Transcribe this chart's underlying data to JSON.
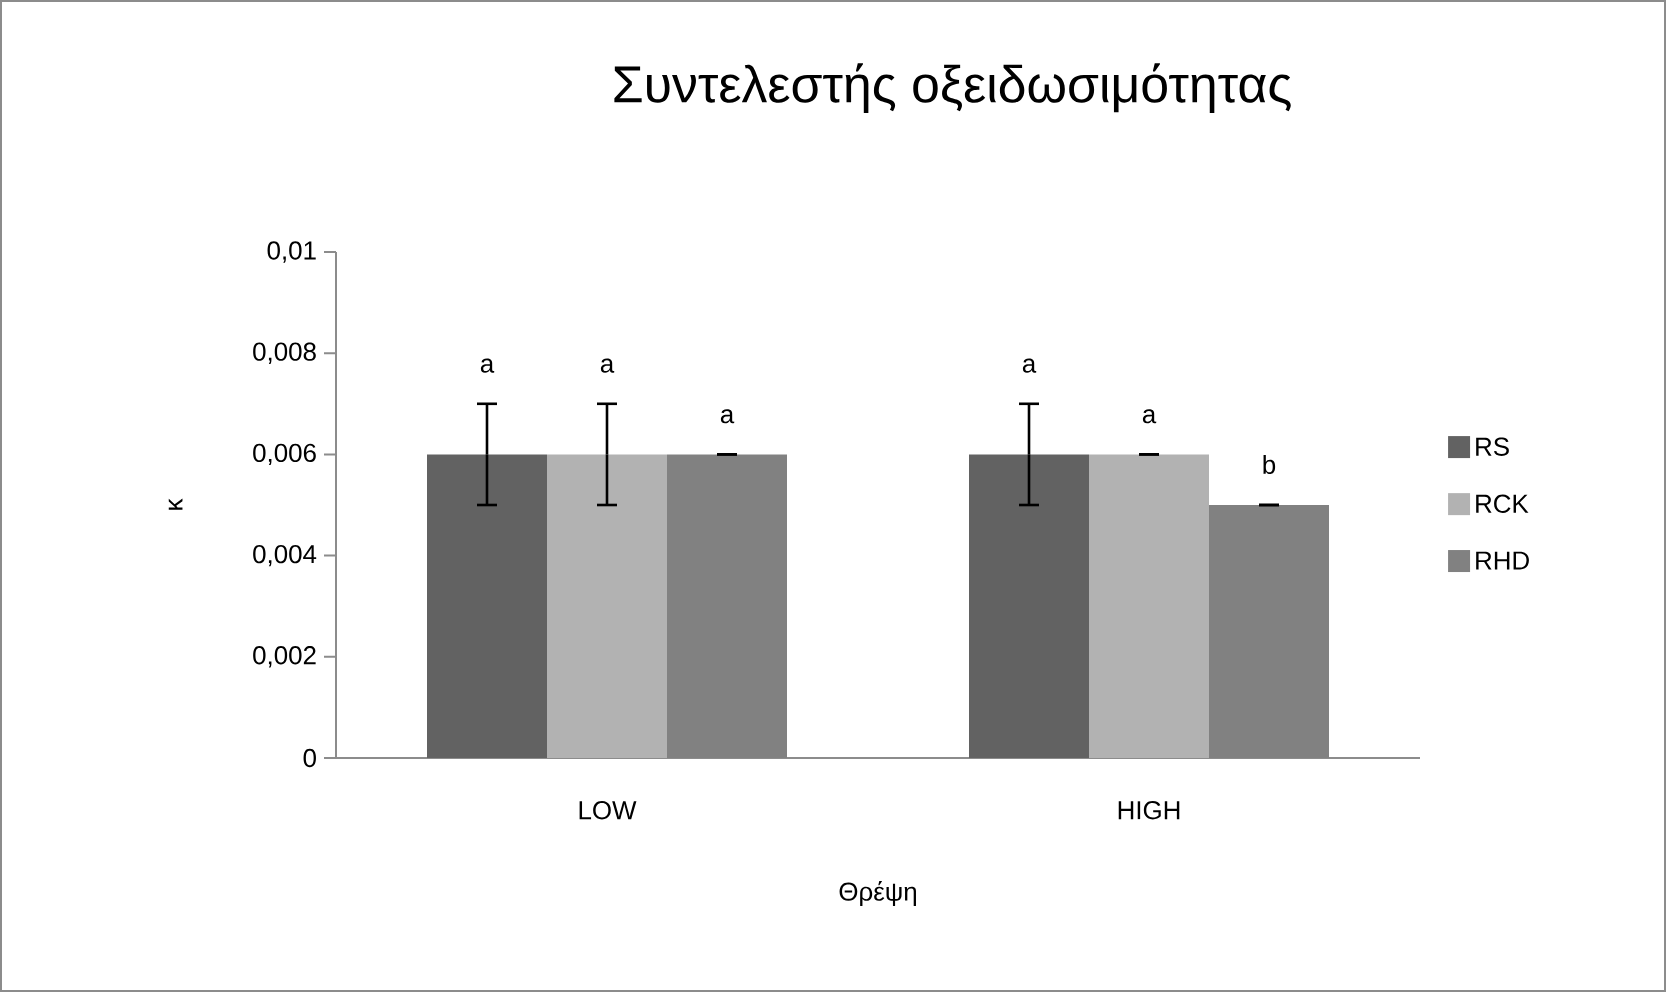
{
  "chart_data": {
    "type": "bar",
    "title": "Συντελεστής οξειδωσιμότητας",
    "xlabel": "Θρέψη",
    "ylabel": "κ",
    "categories": [
      "LOW",
      "HIGH"
    ],
    "series": [
      {
        "name": "RS",
        "color": "#626262",
        "values": [
          0.006,
          0.006
        ],
        "errors": [
          0.001,
          0.001
        ]
      },
      {
        "name": "RCK",
        "color": "#b2b2b2",
        "values": [
          0.006,
          0.006
        ],
        "errors": [
          0.001,
          0
        ]
      },
      {
        "name": "RHD",
        "color": "#818181",
        "values": [
          0.006,
          0.005
        ],
        "errors": [
          0,
          0
        ]
      }
    ],
    "ylim": [
      0,
      0.01
    ],
    "yticks": [
      0,
      {
        "value": 0.002,
        "label": "0,002"
      },
      {
        "value": 0.004,
        "label": "0,004"
      },
      {
        "value": 0.006,
        "label": "0,006"
      },
      {
        "value": 0.008,
        "label": "0,008"
      },
      {
        "value": 0.01,
        "label": "0,01"
      }
    ],
    "annotations": [
      "a",
      "a",
      "a",
      "a",
      "a",
      "b"
    ],
    "grid": false,
    "legend": "right"
  }
}
